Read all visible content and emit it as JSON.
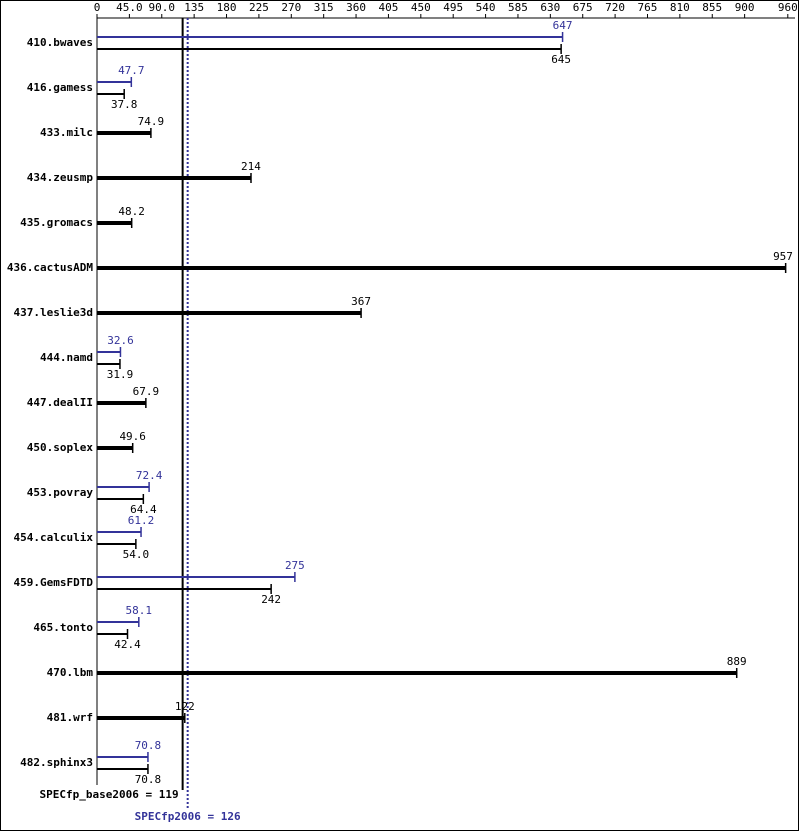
{
  "chart_data": {
    "type": "bar",
    "orientation": "horizontal",
    "categories": [
      "410.bwaves",
      "416.gamess",
      "433.milc",
      "434.zeusmp",
      "435.gromacs",
      "436.cactusADM",
      "437.leslie3d",
      "444.namd",
      "447.dealII",
      "450.soplex",
      "453.povray",
      "454.calculix",
      "459.GemsFDTD",
      "465.tonto",
      "470.lbm",
      "481.wrf",
      "482.sphinx3"
    ],
    "series": [
      {
        "name": "base",
        "color": "#000000",
        "values": [
          645,
          37.8,
          74.9,
          214,
          48.2,
          957,
          367,
          31.9,
          67.9,
          49.6,
          64.4,
          54.0,
          242,
          42.4,
          889,
          122,
          70.8
        ],
        "value_labels": [
          "645",
          "37.8",
          "74.9",
          "214",
          "48.2",
          "957",
          "367",
          "31.9",
          "67.9",
          "49.6",
          "64.4",
          "54.0",
          "242",
          "42.4",
          "889",
          "122",
          "70.8"
        ]
      },
      {
        "name": "peak",
        "color": "#333399",
        "values": [
          647,
          47.7,
          null,
          null,
          null,
          null,
          null,
          32.6,
          null,
          null,
          72.4,
          61.2,
          275,
          58.1,
          null,
          null,
          70.8
        ],
        "value_labels": [
          "647",
          "47.7",
          null,
          null,
          null,
          null,
          null,
          "32.6",
          null,
          null,
          "72.4",
          "61.2",
          "275",
          "58.1",
          null,
          null,
          "70.8"
        ]
      }
    ],
    "xlim": [
      0,
      970
    ],
    "xticks": [
      0,
      {
        "value": 45,
        "label": "45.0"
      },
      {
        "value": 90,
        "label": "90.0"
      },
      135,
      180,
      225,
      270,
      315,
      360,
      405,
      450,
      495,
      540,
      585,
      630,
      675,
      720,
      765,
      810,
      855,
      900,
      960
    ],
    "reference_lines": [
      {
        "label": "SPECfp_base2006 = 119",
        "value": 119,
        "color": "#000000",
        "style": "solid"
      },
      {
        "label": "SPECfp2006 = 126",
        "value": 126,
        "color": "#333399",
        "style": "dotted"
      }
    ]
  }
}
